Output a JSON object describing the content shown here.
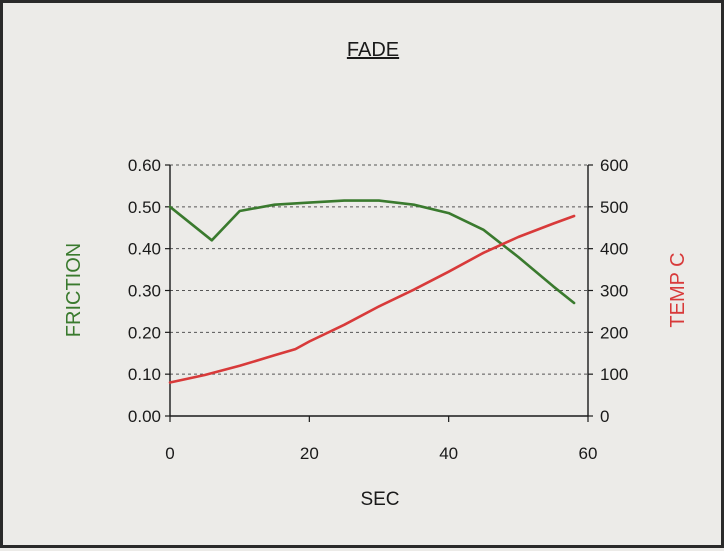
{
  "chart_data": {
    "type": "line",
    "title": "FADE",
    "xlabel": "SEC",
    "ylabel_left": "FRICTION",
    "ylabel_right": "TEMP C",
    "xlim": [
      0,
      60
    ],
    "ylim_left": [
      0,
      0.6
    ],
    "ylim_right": [
      0,
      600
    ],
    "x_ticks": [
      "0",
      "20",
      "40",
      "60"
    ],
    "y_left_ticks": [
      "0.00",
      "0.10",
      "0.20",
      "0.30",
      "0.40",
      "0.50",
      "0.60"
    ],
    "y_right_ticks": [
      "0",
      "100",
      "200",
      "300",
      "400",
      "500",
      "600"
    ],
    "grid": "horizontal dashed",
    "colors": {
      "friction": "#3a7a2e",
      "temp": "#d83a3a",
      "axis": "#1a1a1a",
      "grid": "#555555"
    },
    "series": [
      {
        "key": "friction",
        "axis": "left",
        "x": [
          0,
          6,
          10,
          15,
          20,
          25,
          30,
          35,
          40,
          45,
          50,
          55,
          58
        ],
        "values": [
          0.5,
          0.42,
          0.49,
          0.505,
          0.51,
          0.515,
          0.515,
          0.505,
          0.485,
          0.445,
          0.38,
          0.31,
          0.27
        ]
      },
      {
        "key": "temp",
        "axis": "right",
        "x": [
          0,
          5,
          10,
          15,
          18,
          20,
          25,
          30,
          35,
          40,
          45,
          50,
          55,
          58
        ],
        "values": [
          80,
          98,
          120,
          145,
          160,
          178,
          218,
          262,
          302,
          345,
          390,
          428,
          460,
          478
        ]
      }
    ]
  }
}
